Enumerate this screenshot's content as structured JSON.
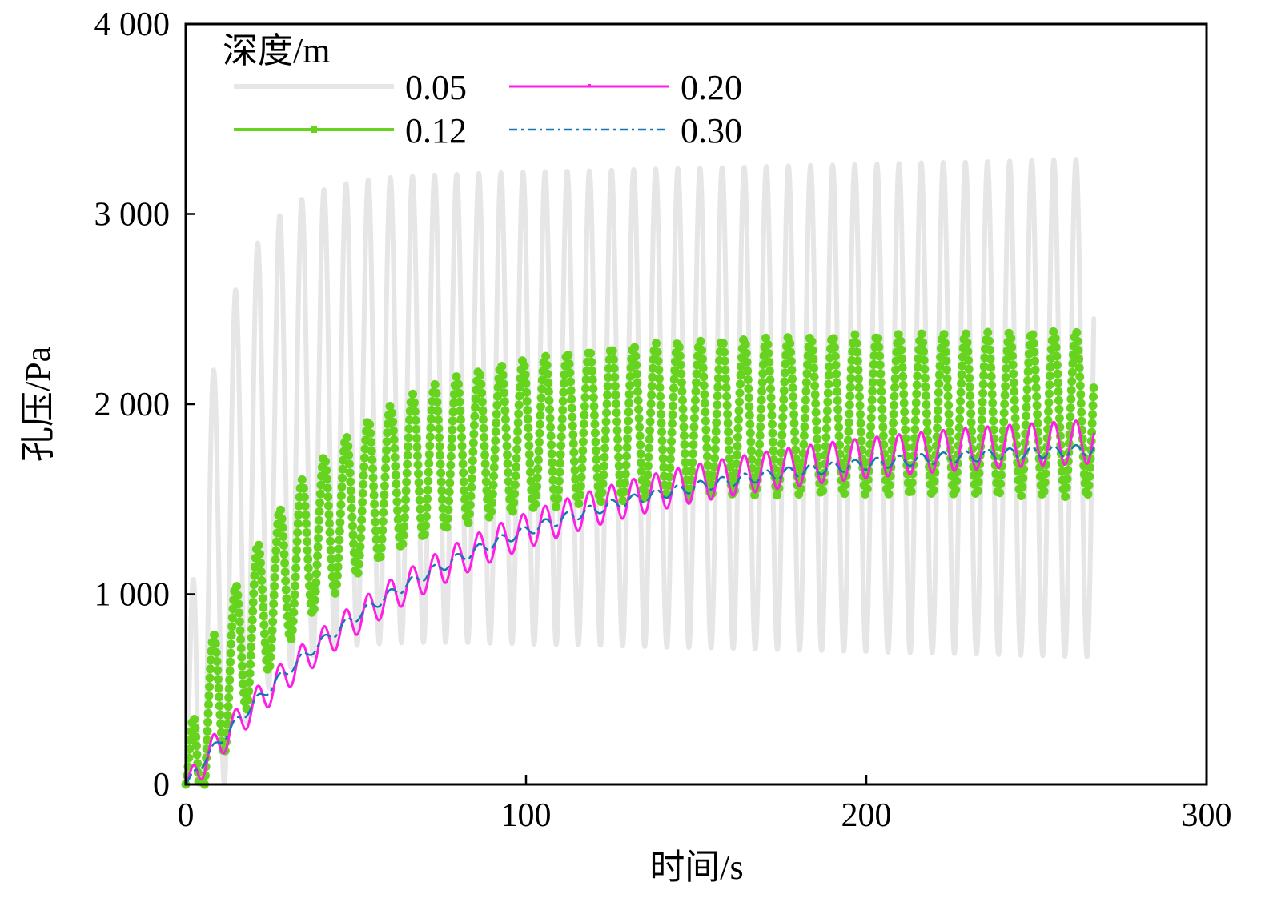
{
  "chart_data": {
    "type": "line",
    "title": "",
    "xlabel": "时间/s",
    "ylabel": "孔压/Pa",
    "xlim": [
      0,
      300
    ],
    "ylim": [
      0,
      4000
    ],
    "xticks": [
      0,
      100,
      200,
      300
    ],
    "xtick_labels": [
      "0",
      "100",
      "200",
      "300"
    ],
    "yticks": [
      0,
      1000,
      2000,
      3000,
      4000
    ],
    "ytick_labels": [
      "0",
      "1 000",
      "2 000",
      "3 000",
      "4 000"
    ],
    "grid": false,
    "legend": {
      "title": "深度/m",
      "position": "top-left",
      "columns": 2
    },
    "duration": 267,
    "wave_period": 6.5,
    "series": [
      {
        "name": "0.05",
        "color": "#e6e6e6",
        "style": "solid-thick",
        "mean_start": 0,
        "mean_end": 1980,
        "amp_start": 1200,
        "amp_end": 1310,
        "rise_time": 12
      },
      {
        "name": "0.12",
        "color": "#66d41f",
        "style": "dotted-markers",
        "mean_start": 0,
        "mean_end": 1950,
        "amp_start": 380,
        "amp_end": 440,
        "rise_time": 35
      },
      {
        "name": "0.20",
        "color": "#ff1ee6",
        "style": "solid",
        "mean_start": 0,
        "mean_end": 1870,
        "amp_start": 80,
        "amp_end": 115,
        "rise_time": 80
      },
      {
        "name": "0.30",
        "color": "#1478b4",
        "style": "dash-dot",
        "mean_start": 0,
        "mean_end": 1810,
        "amp_start": 25,
        "amp_end": 30,
        "rise_time": 75
      }
    ]
  }
}
